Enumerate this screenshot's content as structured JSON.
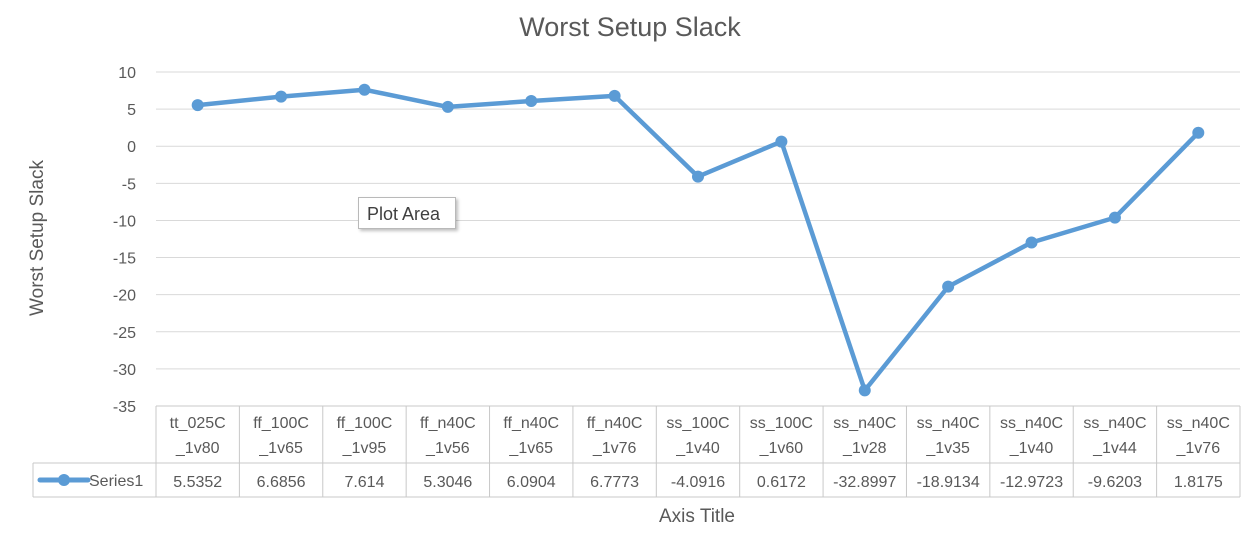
{
  "chart_data": {
    "type": "line",
    "title": "Worst Setup Slack",
    "xlabel": "Axis Title",
    "ylabel": "Worst Setup Slack",
    "ylim": [
      -35,
      10
    ],
    "yticks": [
      10,
      5,
      0,
      -5,
      -10,
      -15,
      -20,
      -25,
      -30,
      -35
    ],
    "grid": true,
    "categories": [
      [
        "tt_025C",
        "_1v80"
      ],
      [
        "ff_100C",
        "_1v65"
      ],
      [
        "ff_100C",
        "_1v95"
      ],
      [
        "ff_n40C",
        "_1v56"
      ],
      [
        "ff_n40C",
        "_1v65"
      ],
      [
        "ff_n40C",
        "_1v76"
      ],
      [
        "ss_100C",
        "_1v40"
      ],
      [
        "ss_100C",
        "_1v60"
      ],
      [
        "ss_n40C",
        "_1v28"
      ],
      [
        "ss_n40C",
        "_1v35"
      ],
      [
        "ss_n40C",
        "_1v40"
      ],
      [
        "ss_n40C",
        "_1v44"
      ],
      [
        "ss_n40C",
        "_1v76"
      ]
    ],
    "series": [
      {
        "name": "Series1",
        "color": "#5b9bd5",
        "values": [
          5.5352,
          6.6856,
          7.614,
          5.3046,
          6.0904,
          6.7773,
          -4.0916,
          0.6172,
          -32.8997,
          -18.9134,
          -12.9723,
          -9.6203,
          1.8175
        ],
        "value_labels": [
          "5.5352",
          "6.6856",
          "7.614",
          "5.3046",
          "6.0904",
          "6.7773",
          "-4.0916",
          "0.6172",
          "-32.8997",
          "-18.9134",
          "-12.9723",
          "-9.6203",
          "1.8175"
        ]
      }
    ],
    "data_table": true
  },
  "tooltip": {
    "text": "Plot Area"
  }
}
